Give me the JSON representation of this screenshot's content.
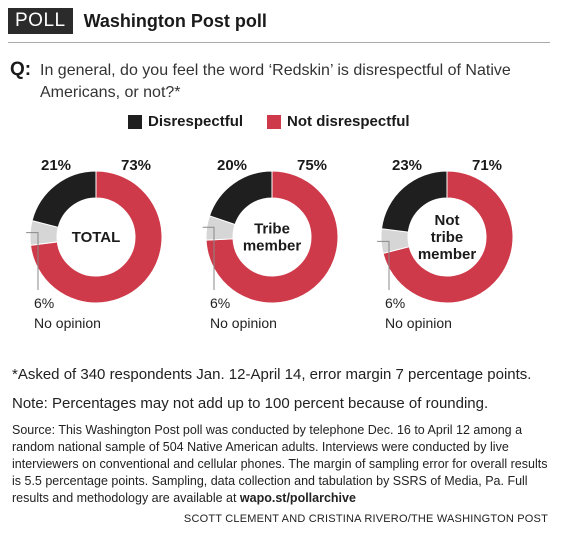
{
  "header": {
    "badge": "POLL",
    "title": "Washington Post poll"
  },
  "question": {
    "marker": "Q:",
    "text": "In general, do you feel the word ‘Redskin’ is disrespectful of Native Americans, or not?*"
  },
  "legend": {
    "items": [
      {
        "label": "Disrespectful",
        "color": "#1f1f1f"
      },
      {
        "label": "Not disrespectful",
        "color": "#cf3a4a"
      }
    ]
  },
  "chart_data": {
    "type": "pie",
    "style": "donut",
    "categories": [
      "Disrespectful",
      "No opinion",
      "Not disrespectful"
    ],
    "colors": {
      "Disrespectful": "#1f1f1f",
      "No opinion": "#d6d6d6",
      "Not disrespectful": "#cf3a4a"
    },
    "charts": [
      {
        "center_label": "TOTAL",
        "disrespectful": 21,
        "not_disrespectful": 73,
        "no_opinion": 6,
        "disrespectful_label": "21%",
        "not_disrespectful_label": "73%",
        "no_opinion_label": "6%",
        "no_opinion_text": "No opinion"
      },
      {
        "center_label": "Tribe\nmember",
        "disrespectful": 20,
        "not_disrespectful": 75,
        "no_opinion": 6,
        "disrespectful_label": "20%",
        "not_disrespectful_label": "75%",
        "no_opinion_label": "6%",
        "no_opinion_text": "No opinion"
      },
      {
        "center_label": "Not\ntribe\nmember",
        "disrespectful": 23,
        "not_disrespectful": 71,
        "no_opinion": 6,
        "disrespectful_label": "23%",
        "not_disrespectful_label": "71%",
        "no_opinion_label": "6%",
        "no_opinion_text": "No opinion"
      }
    ]
  },
  "notes": {
    "asked": "*Asked of 340 respondents Jan. 12-April 14, error margin 7 percentage points.",
    "rounding": "Note: Percentages may not add up to 100 percent because of rounding."
  },
  "source": {
    "text": "Source: This Washington Post poll was conducted by telephone Dec. 16 to April 12 among a random national sample of 504 Native American adults. Interviews were conducted by live interviewers on conventional and cellular phones. The margin of sampling error for overall results is 5.5 percentage points. Sampling, data collection and tabulation by SSRS of Media, Pa. Full results and methodology are available at ",
    "link": "wapo.st/pollarchive"
  },
  "credit": "SCOTT CLEMENT AND CRISTINA RIVERO/THE WASHINGTON POST"
}
